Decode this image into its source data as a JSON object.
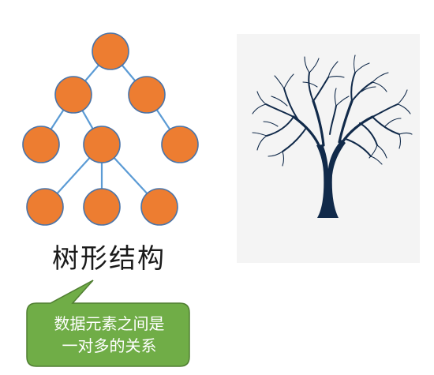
{
  "title": "树形结构",
  "callout": {
    "line1": "数据元素之间是",
    "line2": "一对多的关系"
  },
  "colors": {
    "node_fill": "#ED7D31",
    "node_stroke": "#4A74A8",
    "edge": "#5B9BD5",
    "callout_fill": "#70AD47",
    "callout_stroke": "#507E32",
    "image_bg": "#F4F4F4",
    "tree_dark": "#112A4A"
  },
  "icons": [
    "tree-photo"
  ]
}
